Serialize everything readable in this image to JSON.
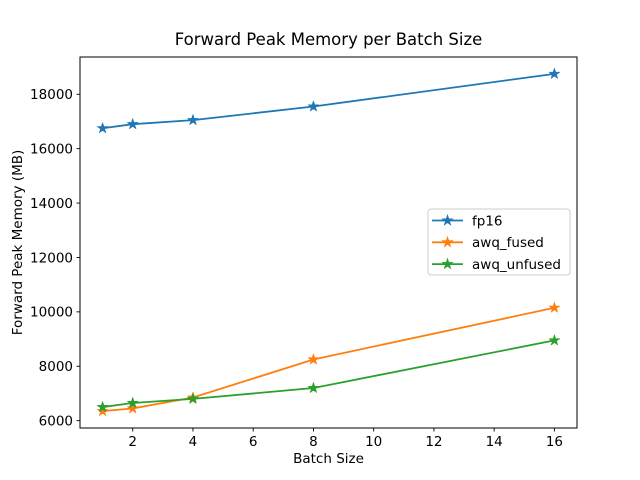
{
  "chart_data": {
    "type": "line",
    "title": "Forward Peak Memory per Batch Size",
    "xlabel": "Batch Size",
    "ylabel": "Forward Peak Memory (MB)",
    "x": [
      1,
      2,
      4,
      8,
      16
    ],
    "series": [
      {
        "name": "fp16",
        "color": "#1f77b4",
        "marker": "star",
        "values": [
          16750,
          16900,
          17050,
          17550,
          18750
        ]
      },
      {
        "name": "awq_fused",
        "color": "#ff7f0e",
        "marker": "star",
        "values": [
          6350,
          6450,
          6850,
          8250,
          10150
        ]
      },
      {
        "name": "awq_unfused",
        "color": "#2ca02c",
        "marker": "star",
        "values": [
          6500,
          6650,
          6800,
          7200,
          8950
        ]
      }
    ],
    "xticks": [
      2,
      4,
      6,
      8,
      10,
      12,
      14,
      16
    ],
    "yticks": [
      6000,
      8000,
      10000,
      12000,
      14000,
      16000,
      18000
    ],
    "xlim": [
      0.25,
      16.75
    ],
    "ylim": [
      5730,
      19370
    ],
    "grid": false,
    "background": "#ffffff",
    "axis_color": "#000000",
    "legend": {
      "position": "center right",
      "entries": [
        "fp16",
        "awq_fused",
        "awq_unfused"
      ]
    }
  }
}
